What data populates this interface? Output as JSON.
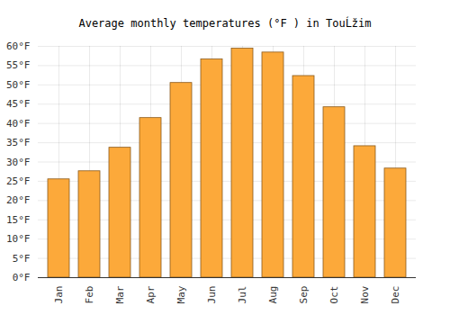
{
  "chart_data": {
    "type": "bar",
    "title": "Average monthly temperatures (°F ) in TouĹžim",
    "categories": [
      "Jan",
      "Feb",
      "Mar",
      "Apr",
      "May",
      "Jun",
      "Jul",
      "Aug",
      "Sep",
      "Oct",
      "Nov",
      "Dec"
    ],
    "values": [
      25.5,
      27.6,
      33.7,
      41.4,
      50.5,
      56.6,
      59.4,
      58.4,
      52.3,
      44.2,
      34.1,
      28.3
    ],
    "color": "#fca93a",
    "ylim": [
      0,
      60
    ],
    "yticks": [
      {
        "value": 0,
        "label": "0°F"
      },
      {
        "value": 5,
        "label": "5°F"
      },
      {
        "value": 10,
        "label": "10°F"
      },
      {
        "value": 15,
        "label": "15°F"
      },
      {
        "value": 20,
        "label": "20°F"
      },
      {
        "value": 25,
        "label": "25°F"
      },
      {
        "value": 30,
        "label": "30°F"
      },
      {
        "value": 35,
        "label": "35°F"
      },
      {
        "value": 40,
        "label": "40°F"
      },
      {
        "value": 45,
        "label": "45°F"
      },
      {
        "value": 50,
        "label": "50°F"
      },
      {
        "value": 55,
        "label": "55°F"
      },
      {
        "value": 60,
        "label": "60°F"
      }
    ],
    "grid": true
  }
}
